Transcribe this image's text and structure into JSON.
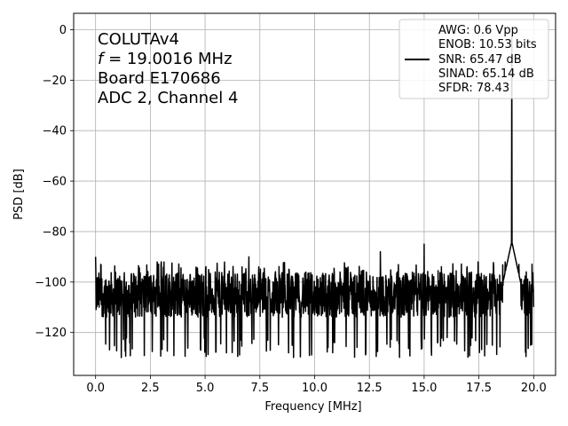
{
  "chart_data": {
    "type": "line",
    "xlabel": "Frequency [MHz]",
    "ylabel": "PSD [dB]",
    "xlim": [
      -1.0,
      21.0
    ],
    "ylim": [
      -137,
      6.5
    ],
    "xticks": [
      0.0,
      2.5,
      5.0,
      7.5,
      10.0,
      12.5,
      15.0,
      17.5,
      20.0
    ],
    "xtick_labels": [
      "0.0",
      "2.5",
      "5.0",
      "7.5",
      "10.0",
      "12.5",
      "15.0",
      "17.5",
      "20.0"
    ],
    "yticks": [
      0,
      -20,
      -40,
      -60,
      -80,
      -100,
      -120
    ],
    "ytick_labels": [
      "0",
      "−20",
      "−40",
      "−60",
      "−80",
      "−100",
      "−120"
    ],
    "grid": true,
    "line_color": "#000000",
    "noise_floor_db": -105,
    "noise_band_db": [
      -122,
      -92
    ],
    "spurs": [
      {
        "x": 0.0,
        "y": -90
      },
      {
        "x": 3.0,
        "y": -92
      },
      {
        "x": 7.0,
        "y": -90
      },
      {
        "x": 13.0,
        "y": -88
      },
      {
        "x": 15.0,
        "y": -85
      },
      {
        "x": 19.0016,
        "y": -2
      }
    ],
    "annotation": {
      "line1": "COLUTAv4",
      "line2_var": "f",
      "line2_rest": " = 19.0016 MHz",
      "line3": "Board E170686",
      "line4": "ADC 2, Channel 4"
    },
    "legend": {
      "location": "top-right",
      "entries": [
        "AWG: 0.6 Vpp",
        "ENOB: 10.53 bits",
        "SNR: 65.47 dB",
        "SINAD: 65.14 dB",
        "SFDR: 78.43"
      ]
    }
  }
}
